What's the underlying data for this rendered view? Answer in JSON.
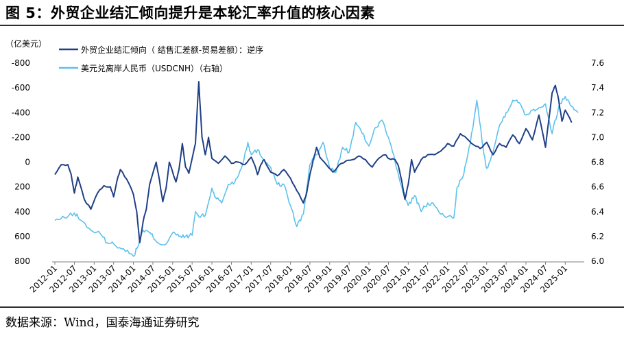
{
  "title": "图 5：外贸企业结汇倾向提升是本轮汇率升值的核心因素",
  "source": "数据来源：Wind，国泰海通证券研究",
  "colors": {
    "left_series": "#1f3f86",
    "right_series": "#5cc1ec"
  },
  "chart_data": {
    "type": "line",
    "left_unit": "（亿美元）",
    "x_tick_labels": [
      "2012-01",
      "2012-07",
      "2013-01",
      "2013-07",
      "2014-01",
      "2014-07",
      "2015-01",
      "2015-07",
      "2016-01",
      "2016-07",
      "2017-01",
      "2017-07",
      "2018-01",
      "2018-07",
      "2019-01",
      "2019-07",
      "2020-01",
      "2020-07",
      "2021-01",
      "2021-07",
      "2022-01",
      "2022-07",
      "2023-01",
      "2023-07",
      "2024-01",
      "2024-07",
      "2025-01"
    ],
    "y_left": {
      "range": [
        -800,
        800
      ],
      "inverted": true,
      "tick_labels": [
        "-800",
        "-600",
        "-400",
        "-200",
        "0",
        "200",
        "400",
        "600",
        "800"
      ]
    },
    "y_right": {
      "range": [
        6.0,
        7.6
      ],
      "tick_labels": [
        "7.6",
        "7.4",
        "7.2",
        "7.0",
        "6.8",
        "6.6",
        "6.4",
        "6.2",
        "6.0"
      ]
    },
    "series": [
      {
        "name": "外贸企业结汇倾向（ 结售汇差额-贸易差额）：逆序",
        "axis": "left",
        "points": [
          [
            "2012-01",
            100
          ],
          [
            "2012-03",
            20
          ],
          [
            "2012-05",
            20
          ],
          [
            "2012-06",
            100
          ],
          [
            "2012-07",
            250
          ],
          [
            "2012-08",
            120
          ],
          [
            "2012-10",
            300
          ],
          [
            "2012-12",
            380
          ],
          [
            "2013-02",
            250
          ],
          [
            "2013-04",
            190
          ],
          [
            "2013-06",
            200
          ],
          [
            "2013-07",
            280
          ],
          [
            "2013-08",
            150
          ],
          [
            "2013-09",
            60
          ],
          [
            "2013-11",
            140
          ],
          [
            "2014-01",
            260
          ],
          [
            "2014-02",
            400
          ],
          [
            "2014-03",
            650
          ],
          [
            "2014-04",
            480
          ],
          [
            "2014-05",
            380
          ],
          [
            "2014-06",
            180
          ],
          [
            "2014-08",
            0
          ],
          [
            "2014-09",
            150
          ],
          [
            "2014-10",
            320
          ],
          [
            "2014-11",
            210
          ],
          [
            "2014-12",
            0
          ],
          [
            "2015-02",
            160
          ],
          [
            "2015-03",
            60
          ],
          [
            "2015-04",
            -150
          ],
          [
            "2015-05",
            40
          ],
          [
            "2015-06",
            90
          ],
          [
            "2015-07",
            -30
          ],
          [
            "2015-08",
            -150
          ],
          [
            "2015-09",
            -650
          ],
          [
            "2015-10",
            -200
          ],
          [
            "2015-11",
            -60
          ],
          [
            "2015-12",
            -200
          ],
          [
            "2016-01",
            -30
          ],
          [
            "2016-03",
            10
          ],
          [
            "2016-05",
            -50
          ],
          [
            "2016-07",
            10
          ],
          [
            "2016-09",
            0
          ],
          [
            "2016-11",
            20
          ],
          [
            "2017-01",
            -40
          ],
          [
            "2017-02",
            20
          ],
          [
            "2017-03",
            100
          ],
          [
            "2017-04",
            20
          ],
          [
            "2017-05",
            -20
          ],
          [
            "2017-07",
            80
          ],
          [
            "2017-09",
            110
          ],
          [
            "2017-11",
            60
          ],
          [
            "2018-01",
            130
          ],
          [
            "2018-03",
            230
          ],
          [
            "2018-05",
            330
          ],
          [
            "2018-06",
            250
          ],
          [
            "2018-07",
            100
          ],
          [
            "2018-08",
            -20
          ],
          [
            "2018-09",
            -120
          ],
          [
            "2018-10",
            -40
          ],
          [
            "2018-12",
            20
          ],
          [
            "2019-02",
            80
          ],
          [
            "2019-04",
            20
          ],
          [
            "2019-06",
            -10
          ],
          [
            "2019-08",
            -20
          ],
          [
            "2019-10",
            -50
          ],
          [
            "2019-12",
            -20
          ],
          [
            "2020-02",
            40
          ],
          [
            "2020-04",
            -30
          ],
          [
            "2020-06",
            -60
          ],
          [
            "2020-07",
            -30
          ],
          [
            "2020-09",
            -20
          ],
          [
            "2020-10",
            30
          ],
          [
            "2020-11",
            150
          ],
          [
            "2020-12",
            300
          ],
          [
            "2021-01",
            180
          ],
          [
            "2021-02",
            -20
          ],
          [
            "2021-03",
            80
          ],
          [
            "2021-05",
            -20
          ],
          [
            "2021-07",
            -60
          ],
          [
            "2021-09",
            -60
          ],
          [
            "2021-11",
            -90
          ],
          [
            "2022-01",
            -150
          ],
          [
            "2022-03",
            -130
          ],
          [
            "2022-05",
            -230
          ],
          [
            "2022-07",
            -190
          ],
          [
            "2022-09",
            -140
          ],
          [
            "2022-11",
            -110
          ],
          [
            "2023-01",
            -160
          ],
          [
            "2023-03",
            -60
          ],
          [
            "2023-05",
            -150
          ],
          [
            "2023-07",
            -120
          ],
          [
            "2023-09",
            -220
          ],
          [
            "2023-11",
            -150
          ],
          [
            "2024-01",
            -270
          ],
          [
            "2024-03",
            -180
          ],
          [
            "2024-05",
            -380
          ],
          [
            "2024-07",
            -120
          ],
          [
            "2024-09",
            -560
          ],
          [
            "2024-10",
            -620
          ],
          [
            "2024-11",
            -500
          ],
          [
            "2024-12",
            -330
          ],
          [
            "2025-01",
            -420
          ],
          [
            "2025-03",
            -320
          ]
        ]
      },
      {
        "name": "美元兑离岸人民币（USDCNH）（右轴）",
        "axis": "right",
        "points": [
          [
            "2012-01",
            6.33
          ],
          [
            "2012-04",
            6.35
          ],
          [
            "2012-07",
            6.39
          ],
          [
            "2012-09",
            6.33
          ],
          [
            "2012-12",
            6.25
          ],
          [
            "2013-03",
            6.22
          ],
          [
            "2013-05",
            6.15
          ],
          [
            "2013-07",
            6.14
          ],
          [
            "2013-10",
            6.1
          ],
          [
            "2014-01",
            6.04
          ],
          [
            "2014-02",
            6.1
          ],
          [
            "2014-04",
            6.25
          ],
          [
            "2014-06",
            6.23
          ],
          [
            "2014-07",
            6.2
          ],
          [
            "2014-09",
            6.14
          ],
          [
            "2014-11",
            6.14
          ],
          [
            "2015-01",
            6.23
          ],
          [
            "2015-03",
            6.2
          ],
          [
            "2015-05",
            6.2
          ],
          [
            "2015-07",
            6.21
          ],
          [
            "2015-08",
            6.4
          ],
          [
            "2015-09",
            6.36
          ],
          [
            "2015-11",
            6.37
          ],
          [
            "2016-01",
            6.59
          ],
          [
            "2016-02",
            6.52
          ],
          [
            "2016-04",
            6.47
          ],
          [
            "2016-06",
            6.62
          ],
          [
            "2016-08",
            6.64
          ],
          [
            "2016-10",
            6.75
          ],
          [
            "2016-12",
            6.96
          ],
          [
            "2017-01",
            6.86
          ],
          [
            "2017-03",
            6.9
          ],
          [
            "2017-05",
            6.82
          ],
          [
            "2017-07",
            6.76
          ],
          [
            "2017-09",
            6.62
          ],
          [
            "2017-11",
            6.62
          ],
          [
            "2018-01",
            6.45
          ],
          [
            "2018-03",
            6.28
          ],
          [
            "2018-05",
            6.38
          ],
          [
            "2018-07",
            6.78
          ],
          [
            "2018-09",
            6.86
          ],
          [
            "2018-11",
            6.96
          ],
          [
            "2019-01",
            6.75
          ],
          [
            "2019-03",
            6.72
          ],
          [
            "2019-05",
            6.92
          ],
          [
            "2019-07",
            6.88
          ],
          [
            "2019-09",
            7.12
          ],
          [
            "2019-11",
            7.03
          ],
          [
            "2020-01",
            6.93
          ],
          [
            "2020-03",
            7.08
          ],
          [
            "2020-05",
            7.14
          ],
          [
            "2020-07",
            7.0
          ],
          [
            "2020-09",
            6.8
          ],
          [
            "2020-11",
            6.6
          ],
          [
            "2021-01",
            6.45
          ],
          [
            "2021-03",
            6.53
          ],
          [
            "2021-05",
            6.4
          ],
          [
            "2021-07",
            6.47
          ],
          [
            "2021-09",
            6.45
          ],
          [
            "2021-11",
            6.38
          ],
          [
            "2022-01",
            6.36
          ],
          [
            "2022-03",
            6.35
          ],
          [
            "2022-04",
            6.6
          ],
          [
            "2022-06",
            6.7
          ],
          [
            "2022-08",
            6.95
          ],
          [
            "2022-10",
            7.3
          ],
          [
            "2022-12",
            6.9
          ],
          [
            "2023-01",
            6.75
          ],
          [
            "2023-03",
            6.88
          ],
          [
            "2023-05",
            7.1
          ],
          [
            "2023-07",
            7.2
          ],
          [
            "2023-09",
            7.3
          ],
          [
            "2023-11",
            7.28
          ],
          [
            "2024-01",
            7.18
          ],
          [
            "2024-03",
            7.22
          ],
          [
            "2024-05",
            7.24
          ],
          [
            "2024-07",
            7.27
          ],
          [
            "2024-09",
            7.03
          ],
          [
            "2024-11",
            7.25
          ],
          [
            "2025-01",
            7.33
          ],
          [
            "2025-03",
            7.25
          ],
          [
            "2025-05",
            7.2
          ]
        ]
      }
    ]
  }
}
